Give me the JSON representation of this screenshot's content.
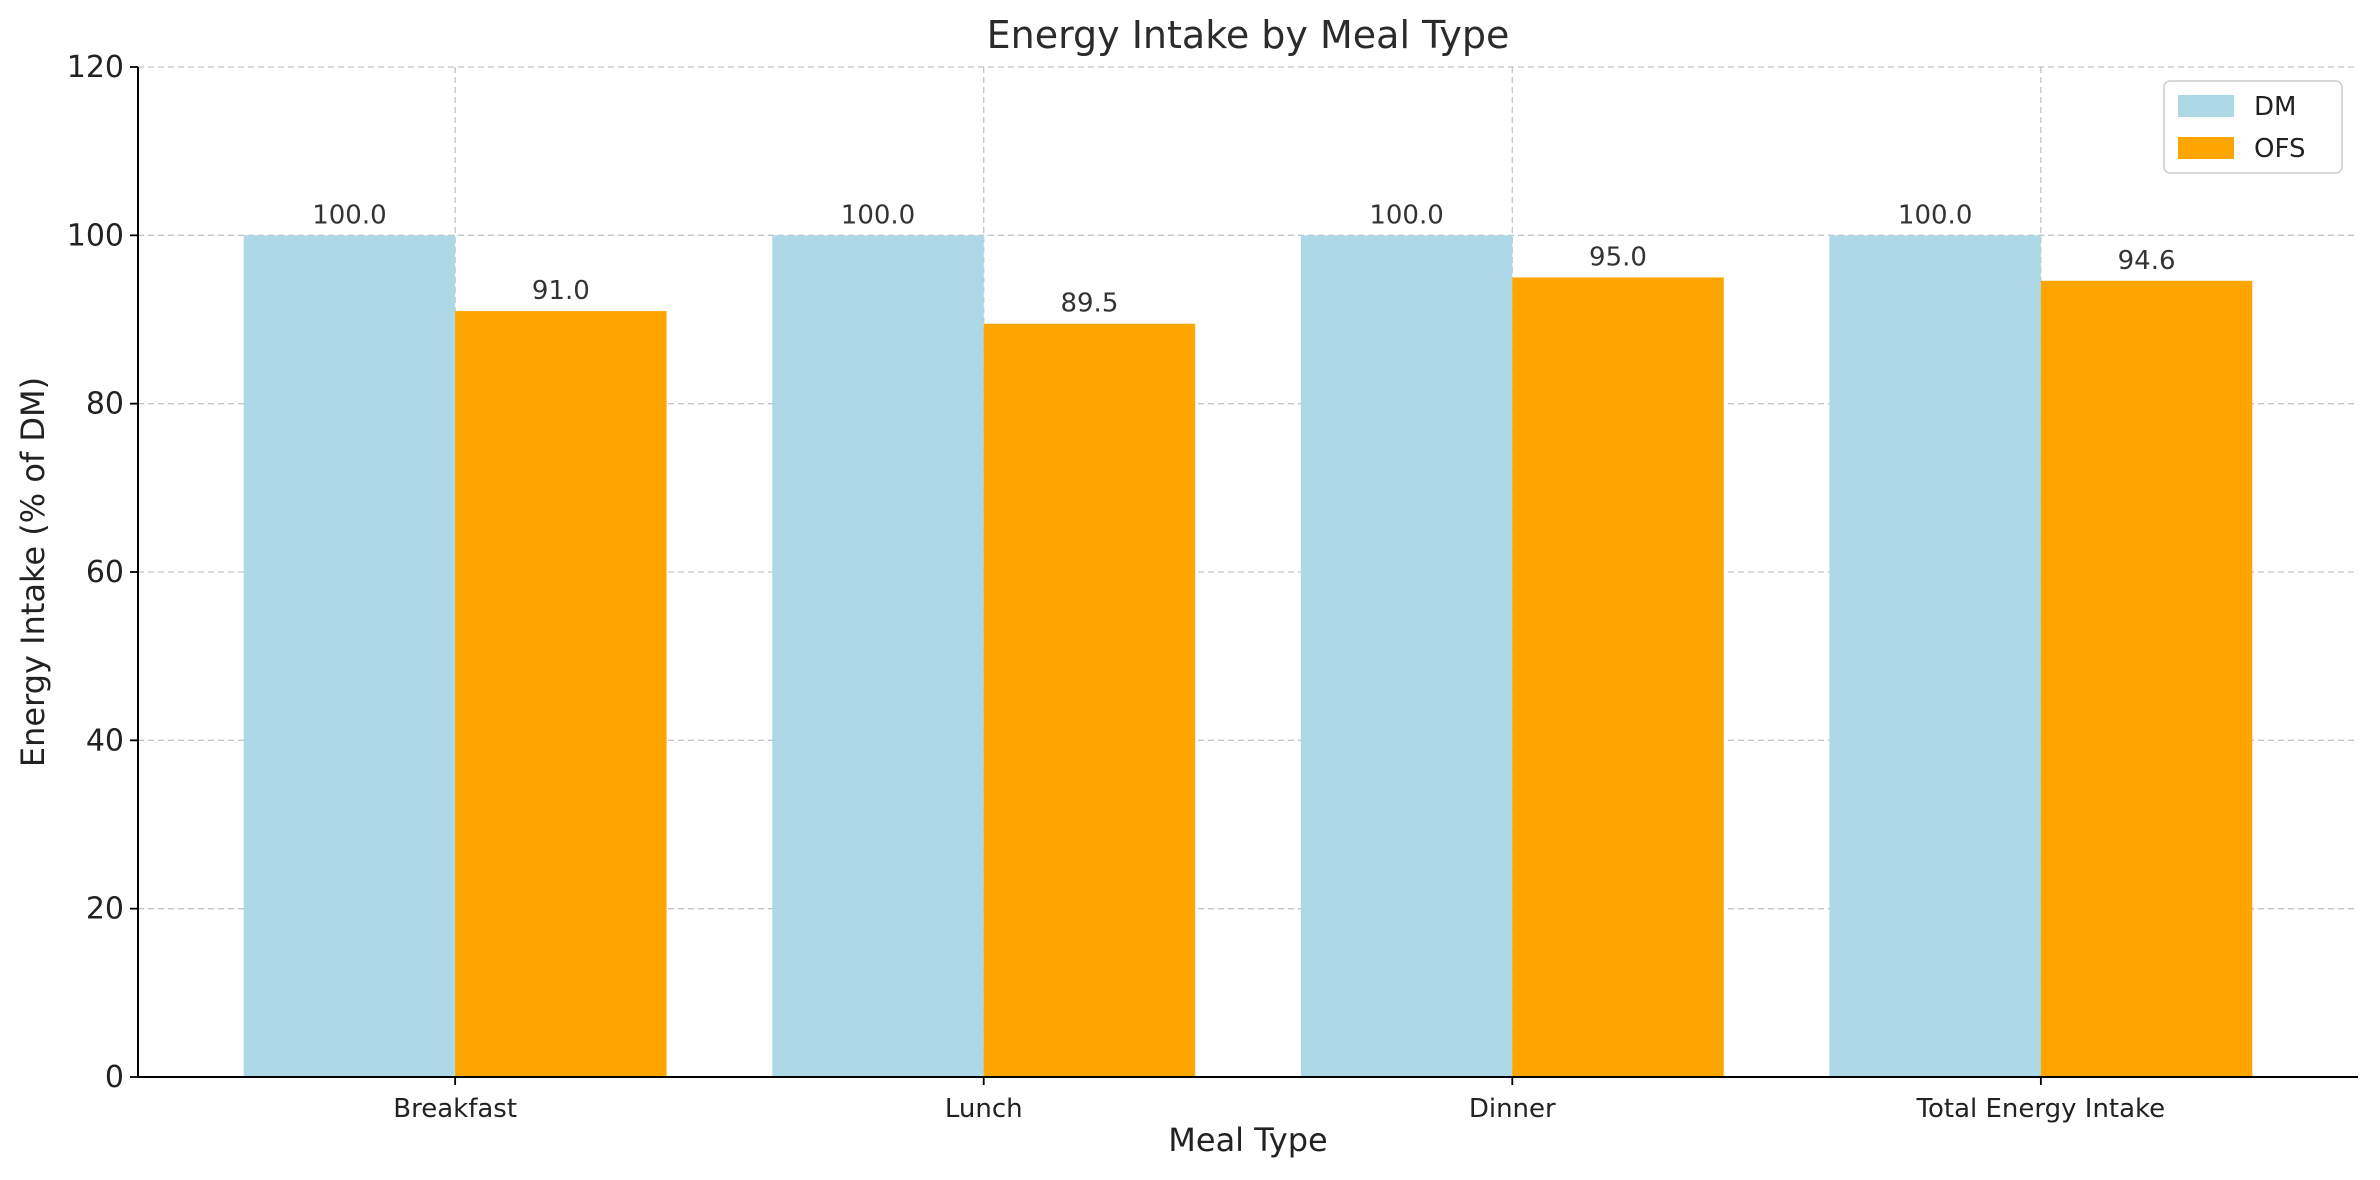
{
  "chart_data": {
    "type": "bar",
    "title": "Energy Intake by Meal Type",
    "xlabel": "Meal Type",
    "ylabel": "Energy Intake (% of DM)",
    "categories": [
      "Breakfast",
      "Lunch",
      "Dinner",
      "Total Energy Intake"
    ],
    "series": [
      {
        "name": "DM",
        "values": [
          100.0,
          100.0,
          100.0,
          100.0
        ],
        "color": "#add8e6"
      },
      {
        "name": "OFS",
        "values": [
          91.0,
          89.5,
          95.0,
          94.6
        ],
        "color": "#ffa500"
      }
    ],
    "ylim": [
      0,
      120
    ],
    "yticks": [
      0,
      20,
      40,
      60,
      80,
      100,
      120
    ],
    "grid": true,
    "legend_position": "top-right",
    "value_label_format": "one-decimal"
  }
}
